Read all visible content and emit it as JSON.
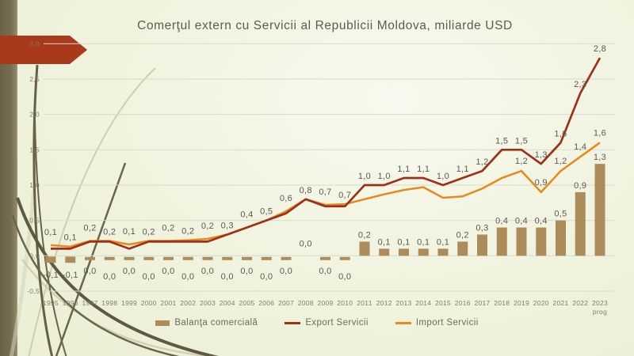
{
  "slide": {
    "title": "Comerţul extern cu Servicii al Republicii Moldova, miliarde USD"
  },
  "theme": {
    "arrow_color": "#A8391A",
    "background_tint": "#EFF2DB",
    "grid_color": "#D9D9CE",
    "data_label_color": "#595955",
    "axis_label_color": "#817D6C"
  },
  "chart_data": {
    "type": "combo-bar-line",
    "title": "Comerţul extern cu Servicii al Republicii Moldova, miliarde USD",
    "unit": "miliarde USD",
    "grid": true,
    "legend_position": "bottom",
    "ylim": [
      -0.5,
      3.0
    ],
    "ytick_values": [
      3.0,
      2.5,
      2.0,
      1.5,
      1.0,
      0.5,
      0.0,
      -0.5
    ],
    "ytick_labels": [
      "3,0",
      "2,5",
      "2,0",
      "1,5",
      "1,0",
      "0,5",
      "0,0",
      "-0,5"
    ],
    "categories": [
      "1995",
      "1996",
      "1997",
      "1998",
      "1999",
      "2000",
      "2001",
      "2002",
      "2003",
      "2004",
      "2005",
      "2006",
      "2007",
      "2008",
      "2009",
      "2010",
      "2011",
      "2012",
      "2013",
      "2014",
      "2015",
      "2016",
      "2017",
      "2018",
      "2019",
      "2020",
      "2021",
      "2022",
      "2023 prog"
    ],
    "series": [
      {
        "name": "Balanţa comercială",
        "type": "bar",
        "color": "#AC8C5A",
        "values": [
          -0.1,
          -0.1,
          0,
          0,
          0,
          0,
          0,
          0,
          0,
          0,
          0,
          0,
          0,
          0,
          0,
          0,
          0.2,
          0.1,
          0.1,
          0.1,
          0.1,
          0.2,
          0.3,
          0.4,
          0.4,
          0.4,
          0.5,
          0.9,
          1.3
        ],
        "labels": [
          "-0,1",
          "-0,1",
          "0,0",
          "0,0",
          "0,0",
          "0,0",
          "0,0",
          "0,0",
          "0,0",
          "0,0",
          "0,0",
          "0,0",
          "0,0",
          "0,0",
          "0,0",
          "0,0",
          "0,2",
          "0,1",
          "0,1",
          "0,1",
          "0,1",
          "0,2",
          "0,3",
          "0,4",
          "0,4",
          "0,4",
          "0,5",
          "0,9",
          "1,3"
        ],
        "zero_label_above_indices": [
          13
        ]
      },
      {
        "name": "Export Servicii",
        "type": "line",
        "color": "#9E3019",
        "values": [
          0.1,
          0.1,
          0.2,
          0.2,
          0.1,
          0.2,
          0.2,
          0.2,
          0.2,
          0.3,
          0.4,
          0.5,
          0.6,
          0.8,
          0.7,
          0.7,
          1.0,
          1.0,
          1.1,
          1.1,
          1.0,
          1.1,
          1.2,
          1.5,
          1.5,
          1.3,
          1.6,
          2.3,
          2.8
        ],
        "labels": [
          "0,1",
          "0,1",
          "0,2",
          "0,2",
          "0,1",
          "0,2",
          "0,2",
          "0,2",
          "0,2",
          "0,3",
          "0,4",
          "0,5",
          "0,6",
          "0,8",
          "0,7",
          "0,7",
          "1,0",
          "1,0",
          "1,1",
          "1,1",
          "1,0",
          "1,1",
          "1,2",
          "1,5",
          "1,5",
          "1,3",
          "1,6",
          "2,3",
          "2,8"
        ]
      },
      {
        "name": "Import Servicii",
        "type": "line",
        "color": "#E8891D",
        "values": [
          0.15,
          0.13,
          0.21,
          0.21,
          0.16,
          0.21,
          0.21,
          0.22,
          0.24,
          0.3,
          0.4,
          0.5,
          0.63,
          0.8,
          0.72,
          0.73,
          0.8,
          0.87,
          0.93,
          0.97,
          0.82,
          0.84,
          0.95,
          1.1,
          1.2,
          0.9,
          1.2,
          1.4,
          1.6
        ],
        "labels": [
          null,
          null,
          null,
          null,
          null,
          null,
          null,
          null,
          null,
          null,
          null,
          null,
          null,
          null,
          null,
          null,
          null,
          null,
          null,
          null,
          null,
          null,
          null,
          null,
          "1,2",
          "0,9",
          "1,2",
          "1,4",
          "1,6"
        ]
      }
    ]
  }
}
